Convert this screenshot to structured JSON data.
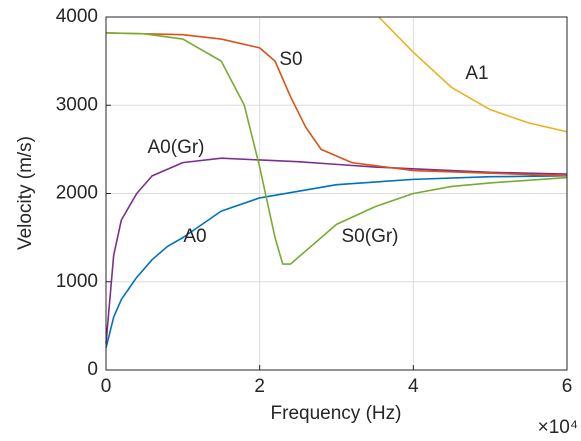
{
  "chart_data": {
    "type": "line",
    "x_label": "Frequency (Hz)",
    "y_label": "Velocity (m/s)",
    "x_multiplier_label": "×10⁴",
    "xlim": [
      0,
      6
    ],
    "xticks": [
      0,
      2,
      4,
      6
    ],
    "ylim": [
      0,
      4000
    ],
    "yticks": [
      0,
      1000,
      2000,
      3000,
      4000
    ],
    "grid": true,
    "annotations": [
      "S0",
      "A1",
      "A0(Gr)",
      "A0",
      "S0(Gr)"
    ],
    "series": [
      {
        "name": "A0",
        "color": "#0072bd",
        "x": [
          0,
          0.1,
          0.2,
          0.4,
          0.6,
          0.8,
          1,
          1.5,
          2,
          3,
          4,
          5,
          6
        ],
        "values": [
          250,
          600,
          800,
          1050,
          1250,
          1400,
          1500,
          1800,
          1950,
          2100,
          2160,
          2190,
          2200
        ]
      },
      {
        "name": "A0(Gr)",
        "color": "#7e2f8e",
        "x": [
          0,
          0.1,
          0.2,
          0.4,
          0.6,
          1,
          1.5,
          2,
          2.5,
          3,
          3.5,
          4,
          4.5,
          5,
          5.5,
          6
        ],
        "values": [
          300,
          1300,
          1700,
          2000,
          2200,
          2350,
          2400,
          2380,
          2360,
          2330,
          2300,
          2280,
          2260,
          2240,
          2230,
          2220
        ]
      },
      {
        "name": "S0",
        "color": "#d95319",
        "x": [
          0,
          1,
          1.5,
          2,
          2.2,
          2.4,
          2.6,
          2.8,
          3.2,
          4,
          5,
          6
        ],
        "values": [
          3820,
          3800,
          3750,
          3650,
          3500,
          3100,
          2750,
          2500,
          2350,
          2260,
          2230,
          2200
        ]
      },
      {
        "name": "S0(Gr)",
        "color": "#77ac30",
        "x": [
          0,
          0.5,
          1,
          1.5,
          1.8,
          2,
          2.2,
          2.3,
          2.4,
          2.6,
          3,
          3.5,
          4,
          4.5,
          5,
          6
        ],
        "values": [
          3820,
          3810,
          3750,
          3500,
          3000,
          2300,
          1500,
          1200,
          1200,
          1350,
          1650,
          1850,
          2000,
          2080,
          2120,
          2180
        ]
      },
      {
        "name": "A1",
        "color": "#edb120",
        "x": [
          3.55,
          4,
          4.5,
          5,
          5.5,
          6
        ],
        "values": [
          4000,
          3600,
          3200,
          2950,
          2800,
          2700
        ]
      }
    ]
  }
}
